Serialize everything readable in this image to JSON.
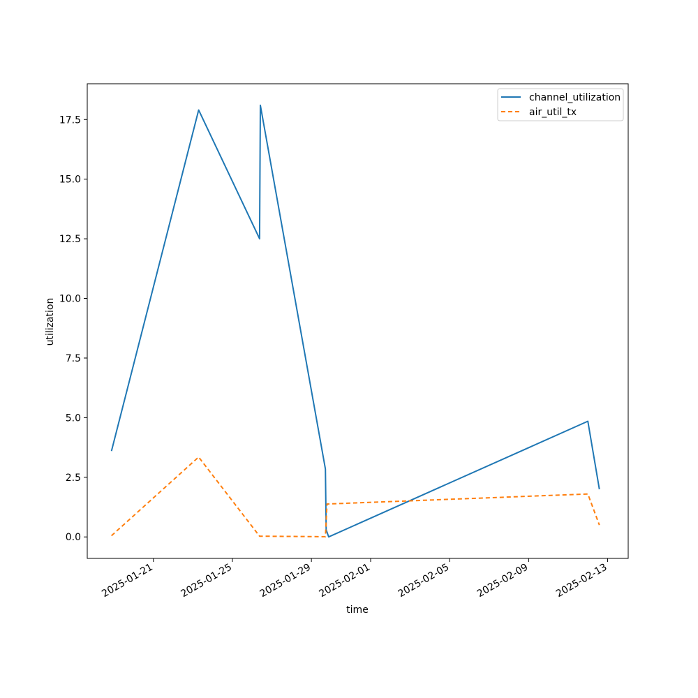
{
  "chart_data": {
    "type": "line",
    "title": "",
    "xlabel": "time",
    "ylabel": "utilization",
    "x_axis_type": "date",
    "xlim": [
      "2025-01-17T15:36",
      "2025-02-14T01:00"
    ],
    "ylim": [
      -0.9,
      19.0
    ],
    "x_ticks": [
      "2025-01-21",
      "2025-01-25",
      "2025-01-29",
      "2025-02-01",
      "2025-02-05",
      "2025-02-09",
      "2025-02-13"
    ],
    "y_ticks": [
      0.0,
      2.5,
      5.0,
      7.5,
      10.0,
      12.5,
      15.0,
      17.5
    ],
    "y_tick_labels": [
      "0.0",
      "2.5",
      "5.0",
      "7.5",
      "10.0",
      "12.5",
      "15.0",
      "17.5"
    ],
    "grid": false,
    "legend_position": "top-right",
    "series": [
      {
        "name": "channel_utilization",
        "color": "#1f77b4",
        "style": "solid",
        "points": [
          {
            "x": "2025-01-18T21:00",
            "y": 3.6
          },
          {
            "x": "2025-01-23T07:00",
            "y": 17.9
          },
          {
            "x": "2025-01-26T09:00",
            "y": 12.5
          },
          {
            "x": "2025-01-26T10:00",
            "y": 18.1
          },
          {
            "x": "2025-01-29T17:00",
            "y": 2.85
          },
          {
            "x": "2025-01-29T18:00",
            "y": 0.3
          },
          {
            "x": "2025-01-29T21:00",
            "y": 0.0
          },
          {
            "x": "2025-02-12T00:00",
            "y": 4.85
          },
          {
            "x": "2025-02-12T14:00",
            "y": 2.0
          }
        ]
      },
      {
        "name": "air_util_tx",
        "color": "#ff7f0e",
        "style": "dashed",
        "points": [
          {
            "x": "2025-01-18T21:00",
            "y": 0.05
          },
          {
            "x": "2025-01-23T07:00",
            "y": 3.35
          },
          {
            "x": "2025-01-26T09:00",
            "y": 0.03
          },
          {
            "x": "2025-01-29T17:00",
            "y": 0.01
          },
          {
            "x": "2025-01-29T19:00",
            "y": 1.38
          },
          {
            "x": "2025-02-12T00:00",
            "y": 1.8
          },
          {
            "x": "2025-02-12T14:00",
            "y": 0.5
          }
        ]
      }
    ]
  }
}
